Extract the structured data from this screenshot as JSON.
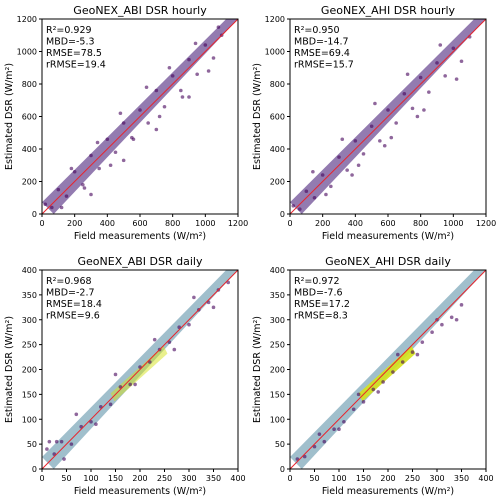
{
  "chart_data": [
    {
      "type": "scatter",
      "title": "GeoNEX_ABI DSR hourly",
      "xlabel": "Field measurements (W/m²)",
      "ylabel": "Estimated DSR (W/m²)",
      "xlim": [
        0,
        1200
      ],
      "ylim": [
        0,
        1200
      ],
      "xticks": [
        "0",
        "200",
        "400",
        "600",
        "800",
        "1000",
        "1200"
      ],
      "yticks": [
        "0",
        "200",
        "400",
        "600",
        "800",
        "1000",
        "1200"
      ],
      "stats": [
        "R²=0.929",
        "MBD=-5.3",
        "RMSE=78.5",
        "rRMSE=19.4"
      ],
      "one_to_one_line": [
        [
          0,
          0
        ],
        [
          1200,
          1200
        ]
      ],
      "line_color": "#e8242c",
      "point_color": "#44015a",
      "points_x": [
        20,
        60,
        100,
        150,
        200,
        250,
        300,
        350,
        400,
        450,
        500,
        550,
        600,
        650,
        700,
        750,
        800,
        850,
        900,
        950,
        1000,
        1050,
        1100,
        120,
        180,
        260,
        340,
        420,
        480,
        560,
        640,
        720,
        780,
        860,
        940,
        1020,
        1080,
        300,
        500,
        700,
        900
      ],
      "points_y": [
        60,
        40,
        150,
        110,
        260,
        180,
        360,
        280,
        460,
        380,
        560,
        470,
        640,
        560,
        760,
        660,
        850,
        760,
        950,
        860,
        1040,
        960,
        1100,
        40,
        280,
        160,
        440,
        300,
        620,
        460,
        780,
        600,
        900,
        720,
        1050,
        880,
        1150,
        120,
        330,
        520,
        720
      ]
    },
    {
      "type": "scatter",
      "title": "GeoNEX_AHI DSR hourly",
      "xlabel": "Field measurements (W/m²)",
      "ylabel": "Estimated DSR (W/m²)",
      "xlim": [
        0,
        1200
      ],
      "ylim": [
        0,
        1200
      ],
      "xticks": [
        "0",
        "200",
        "400",
        "600",
        "800",
        "1000",
        "1200"
      ],
      "yticks": [
        "0",
        "200",
        "400",
        "600",
        "800",
        "1000",
        "1200"
      ],
      "stats": [
        "R²=0.950",
        "MBD=-14.7",
        "RMSE=69.4",
        "rRMSE=15.7"
      ],
      "one_to_one_line": [
        [
          0,
          0
        ],
        [
          1200,
          1200
        ]
      ],
      "line_color": "#e8242c",
      "point_color": "#44015a",
      "points_x": [
        20,
        60,
        100,
        150,
        200,
        250,
        300,
        350,
        400,
        450,
        500,
        550,
        600,
        650,
        700,
        750,
        800,
        850,
        900,
        950,
        1000,
        1050,
        1100,
        140,
        220,
        320,
        420,
        520,
        620,
        720,
        820,
        920,
        1020,
        380,
        580,
        780
      ],
      "points_y": [
        50,
        30,
        140,
        100,
        240,
        170,
        350,
        270,
        450,
        370,
        540,
        450,
        640,
        560,
        740,
        650,
        840,
        750,
        930,
        850,
        1020,
        940,
        1090,
        260,
        120,
        460,
        300,
        680,
        470,
        860,
        640,
        1040,
        830,
        240,
        420,
        600
      ]
    },
    {
      "type": "scatter",
      "title": "GeoNEX_ABI DSR daily",
      "xlabel": "Field measurements (W/m²)",
      "ylabel": "Estimated DSR (W/m²)",
      "xlim": [
        0,
        400
      ],
      "ylim": [
        0,
        400
      ],
      "xticks": [
        "0",
        "50",
        "100",
        "150",
        "200",
        "250",
        "300",
        "350",
        "400"
      ],
      "yticks": [
        "0",
        "50",
        "100",
        "150",
        "200",
        "250",
        "300",
        "350",
        "400"
      ],
      "stats": [
        "R²=0.968",
        "MBD=-2.7",
        "RMSE=18.4",
        "rRMSE=9.6"
      ],
      "one_to_one_line": [
        [
          0,
          0
        ],
        [
          400,
          400
        ]
      ],
      "line_color": "#e8242c",
      "point_color": "#44015a",
      "points_x": [
        10,
        25,
        40,
        60,
        80,
        100,
        120,
        140,
        160,
        180,
        200,
        220,
        240,
        260,
        280,
        300,
        320,
        340,
        360,
        380,
        30,
        70,
        110,
        150,
        190,
        230,
        270,
        310,
        350,
        15,
        45
      ],
      "points_y": [
        40,
        30,
        55,
        50,
        85,
        95,
        125,
        130,
        165,
        170,
        205,
        215,
        240,
        255,
        285,
        290,
        320,
        335,
        360,
        375,
        55,
        110,
        90,
        190,
        170,
        260,
        240,
        345,
        325,
        55,
        20
      ]
    },
    {
      "type": "scatter",
      "title": "GeoNEX_AHI DSR daily",
      "xlabel": "Field measurements (W/m²)",
      "ylabel": "Estimated DSR (W/m²)",
      "xlim": [
        0,
        400
      ],
      "ylim": [
        0,
        400
      ],
      "xticks": [
        "0",
        "50",
        "100",
        "150",
        "200",
        "250",
        "300",
        "350",
        "400"
      ],
      "yticks": [
        "0",
        "50",
        "100",
        "150",
        "200",
        "250",
        "300",
        "350",
        "400"
      ],
      "stats": [
        "R²=0.972",
        "MBD=-7.6",
        "RMSE=17.2",
        "rRMSE=8.3"
      ],
      "one_to_one_line": [
        [
          0,
          0
        ],
        [
          400,
          400
        ]
      ],
      "line_color": "#e8242c",
      "point_color": "#44015a",
      "points_x": [
        15,
        30,
        50,
        70,
        90,
        110,
        130,
        150,
        170,
        190,
        210,
        230,
        250,
        270,
        290,
        310,
        330,
        350,
        60,
        100,
        140,
        180,
        220,
        260,
        300,
        340
      ],
      "points_y": [
        20,
        25,
        45,
        55,
        80,
        95,
        120,
        135,
        160,
        175,
        195,
        215,
        235,
        255,
        275,
        290,
        305,
        330,
        70,
        80,
        150,
        155,
        230,
        230,
        300,
        300
      ]
    }
  ]
}
